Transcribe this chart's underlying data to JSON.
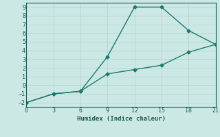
{
  "xlabel": "Humidex (Indice chaleur)",
  "x_upper": [
    0,
    3,
    6,
    9,
    12,
    15,
    18,
    21
  ],
  "y_upper": [
    -2,
    -1,
    -0.7,
    3.3,
    9,
    9,
    6.3,
    4.7
  ],
  "x_lower": [
    0,
    3,
    6,
    9,
    12,
    15,
    18,
    21
  ],
  "y_lower": [
    -2,
    -1,
    -0.7,
    1.3,
    1.8,
    2.3,
    3.8,
    4.7
  ],
  "line_color": "#1a7a6e",
  "bg_color": "#cce8e4",
  "grid_color": "#b8d8d4",
  "xlim": [
    0,
    21
  ],
  "ylim": [
    -2.5,
    9.5
  ],
  "xticks": [
    0,
    3,
    6,
    9,
    12,
    15,
    18,
    21
  ],
  "yticks": [
    -2,
    -1,
    0,
    1,
    2,
    3,
    4,
    5,
    6,
    7,
    8,
    9
  ],
  "marker": "D",
  "marker_size": 2.5,
  "linewidth": 1.0,
  "font_color": "#1a5a54",
  "tick_fontsize": 6,
  "xlabel_fontsize": 6.5
}
